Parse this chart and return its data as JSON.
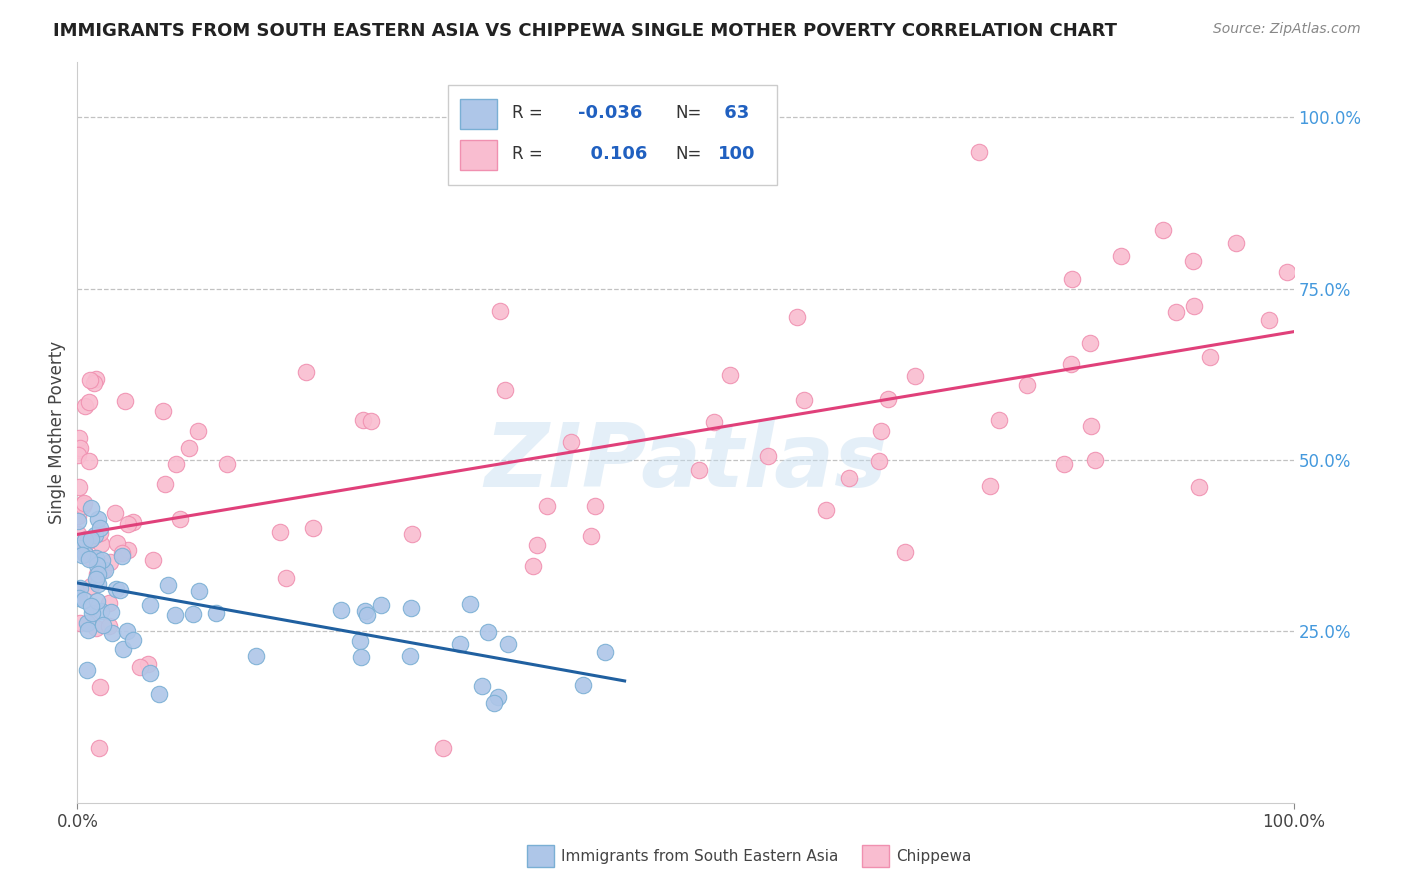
{
  "title": "IMMIGRANTS FROM SOUTH EASTERN ASIA VS CHIPPEWA SINGLE MOTHER POVERTY CORRELATION CHART",
  "source": "Source: ZipAtlas.com",
  "ylabel": "Single Mother Poverty",
  "watermark": "ZIPatlas",
  "background_color": "#ffffff",
  "grid_color": "#dddddd",
  "blue_scatter_face": "#aec6e8",
  "blue_scatter_edge": "#7aafd4",
  "pink_scatter_face": "#f9bdd0",
  "pink_scatter_edge": "#f090b0",
  "blue_line_color": "#2060a0",
  "pink_line_color": "#e0407a",
  "dashed_line_color": "#b8b8b8",
  "legend_r1": "-0.036",
  "legend_n1": " 63",
  "legend_r2": "  0.106",
  "legend_n2": "100",
  "ytick_color": "#4499dd",
  "title_color": "#222222",
  "source_color": "#888888"
}
